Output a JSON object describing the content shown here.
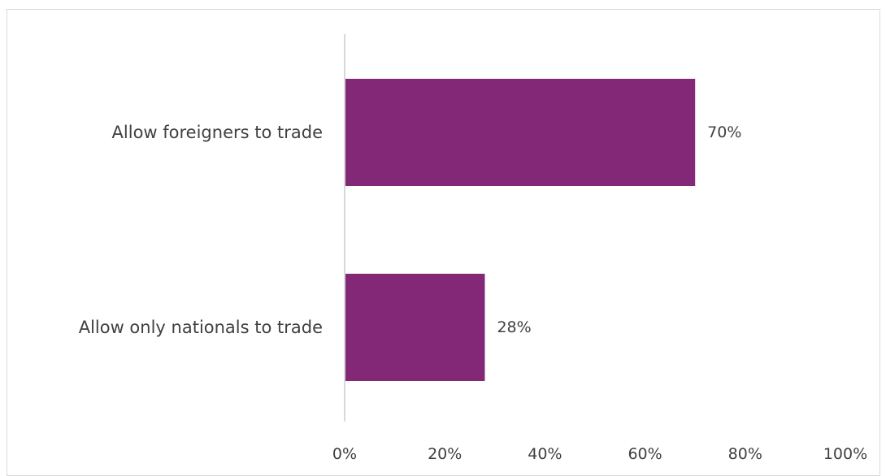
{
  "chart_data": {
    "type": "bar",
    "orientation": "horizontal",
    "categories": [
      "Allow foreigners to trade",
      "Allow only nationals to trade"
    ],
    "values": [
      70,
      28
    ],
    "data_labels": [
      "70%",
      "28%"
    ],
    "xlim": [
      0,
      100
    ],
    "x_ticks": [
      "0%",
      "20%",
      "40%",
      "60%",
      "80%",
      "100%"
    ],
    "title": "",
    "xlabel": "",
    "ylabel": "",
    "grid": false,
    "legend": "none",
    "bar_color": "#832877",
    "axis_color": "#d9d9d9",
    "text_color": "#404040"
  }
}
